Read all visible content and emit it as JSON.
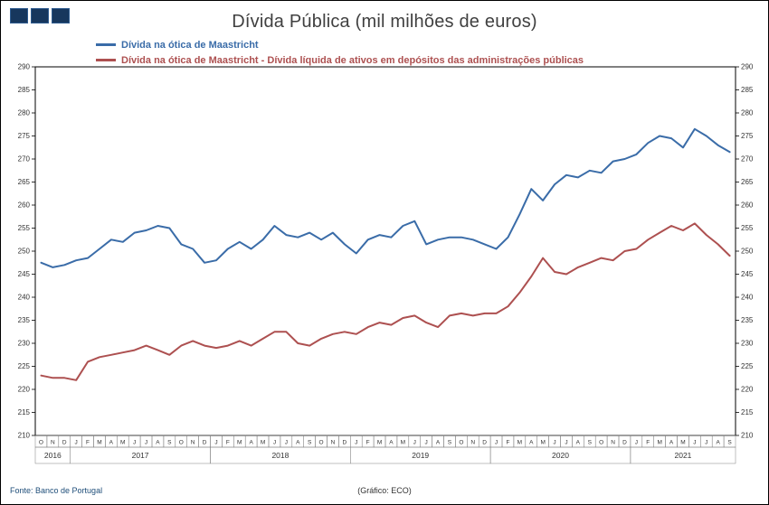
{
  "page": {
    "footer_left": "Fonte: Banco de Portugal",
    "footer_center": "(Gráfico: ECO)"
  },
  "colors": {
    "series_blue": "#3A6CA8",
    "series_red": "#AD5050",
    "title_text": "#404040",
    "footer_blue": "#1F4E79",
    "logo_navy": "#17375D"
  },
  "chart_data": {
    "type": "line",
    "title": "Dívida Pública (mil milhões de euros)",
    "xlabel": "",
    "ylabel": "",
    "ylim": [
      210,
      290
    ],
    "ytick_step": 5,
    "grid": false,
    "legend_position": "top-left",
    "years": [
      {
        "label": "2016",
        "months": [
          "O",
          "N",
          "D"
        ]
      },
      {
        "label": "2017",
        "months": [
          "J",
          "F",
          "M",
          "A",
          "M",
          "J",
          "J",
          "A",
          "S",
          "O",
          "N",
          "D"
        ]
      },
      {
        "label": "2018",
        "months": [
          "J",
          "F",
          "M",
          "A",
          "M",
          "J",
          "J",
          "A",
          "S",
          "O",
          "N",
          "D"
        ]
      },
      {
        "label": "2019",
        "months": [
          "J",
          "F",
          "M",
          "A",
          "M",
          "J",
          "J",
          "A",
          "S",
          "O",
          "N",
          "D"
        ]
      },
      {
        "label": "2020",
        "months": [
          "J",
          "F",
          "M",
          "A",
          "M",
          "J",
          "J",
          "A",
          "S",
          "O",
          "N",
          "D"
        ]
      },
      {
        "label": "2021",
        "months": [
          "J",
          "F",
          "M",
          "A",
          "M",
          "J",
          "J",
          "A",
          "S"
        ]
      }
    ],
    "series": [
      {
        "name": "Dívida na ótica de Maastricht",
        "color": "#3A6CA8",
        "values": [
          247.5,
          246.5,
          247.0,
          248.0,
          248.5,
          250.5,
          252.5,
          252.0,
          254.0,
          254.5,
          255.5,
          255.0,
          251.5,
          250.5,
          247.5,
          248.0,
          250.5,
          252.0,
          250.5,
          252.5,
          255.5,
          253.5,
          253.0,
          254.0,
          252.5,
          254.0,
          251.5,
          249.5,
          252.5,
          253.5,
          253.0,
          255.5,
          256.5,
          251.5,
          252.5,
          253.0,
          253.0,
          252.5,
          251.5,
          250.5,
          253.0,
          258.0,
          263.5,
          261.0,
          264.5,
          266.5,
          266.0,
          267.5,
          267.0,
          269.5,
          270.0,
          271.0,
          273.5,
          275.0,
          274.5,
          272.5,
          276.5,
          275.0,
          273.0,
          271.5
        ]
      },
      {
        "name": "Dívida na ótica de Maastricht - Dívida líquida de ativos em depósitos das administrações públicas",
        "color": "#AD5050",
        "values": [
          223.0,
          222.5,
          222.5,
          222.0,
          226.0,
          227.0,
          227.5,
          228.0,
          228.5,
          229.5,
          228.5,
          227.5,
          229.5,
          230.5,
          229.5,
          229.0,
          229.5,
          230.5,
          229.5,
          231.0,
          232.5,
          232.5,
          230.0,
          229.5,
          231.0,
          232.0,
          232.5,
          232.0,
          233.5,
          234.5,
          234.0,
          235.5,
          236.0,
          234.5,
          233.5,
          236.0,
          236.5,
          236.0,
          236.5,
          236.5,
          238.0,
          241.0,
          244.5,
          248.5,
          245.5,
          245.0,
          246.5,
          247.5,
          248.5,
          248.0,
          250.0,
          250.5,
          252.5,
          254.0,
          255.5,
          254.5,
          256.0,
          253.5,
          251.5,
          249.0
        ]
      }
    ]
  }
}
